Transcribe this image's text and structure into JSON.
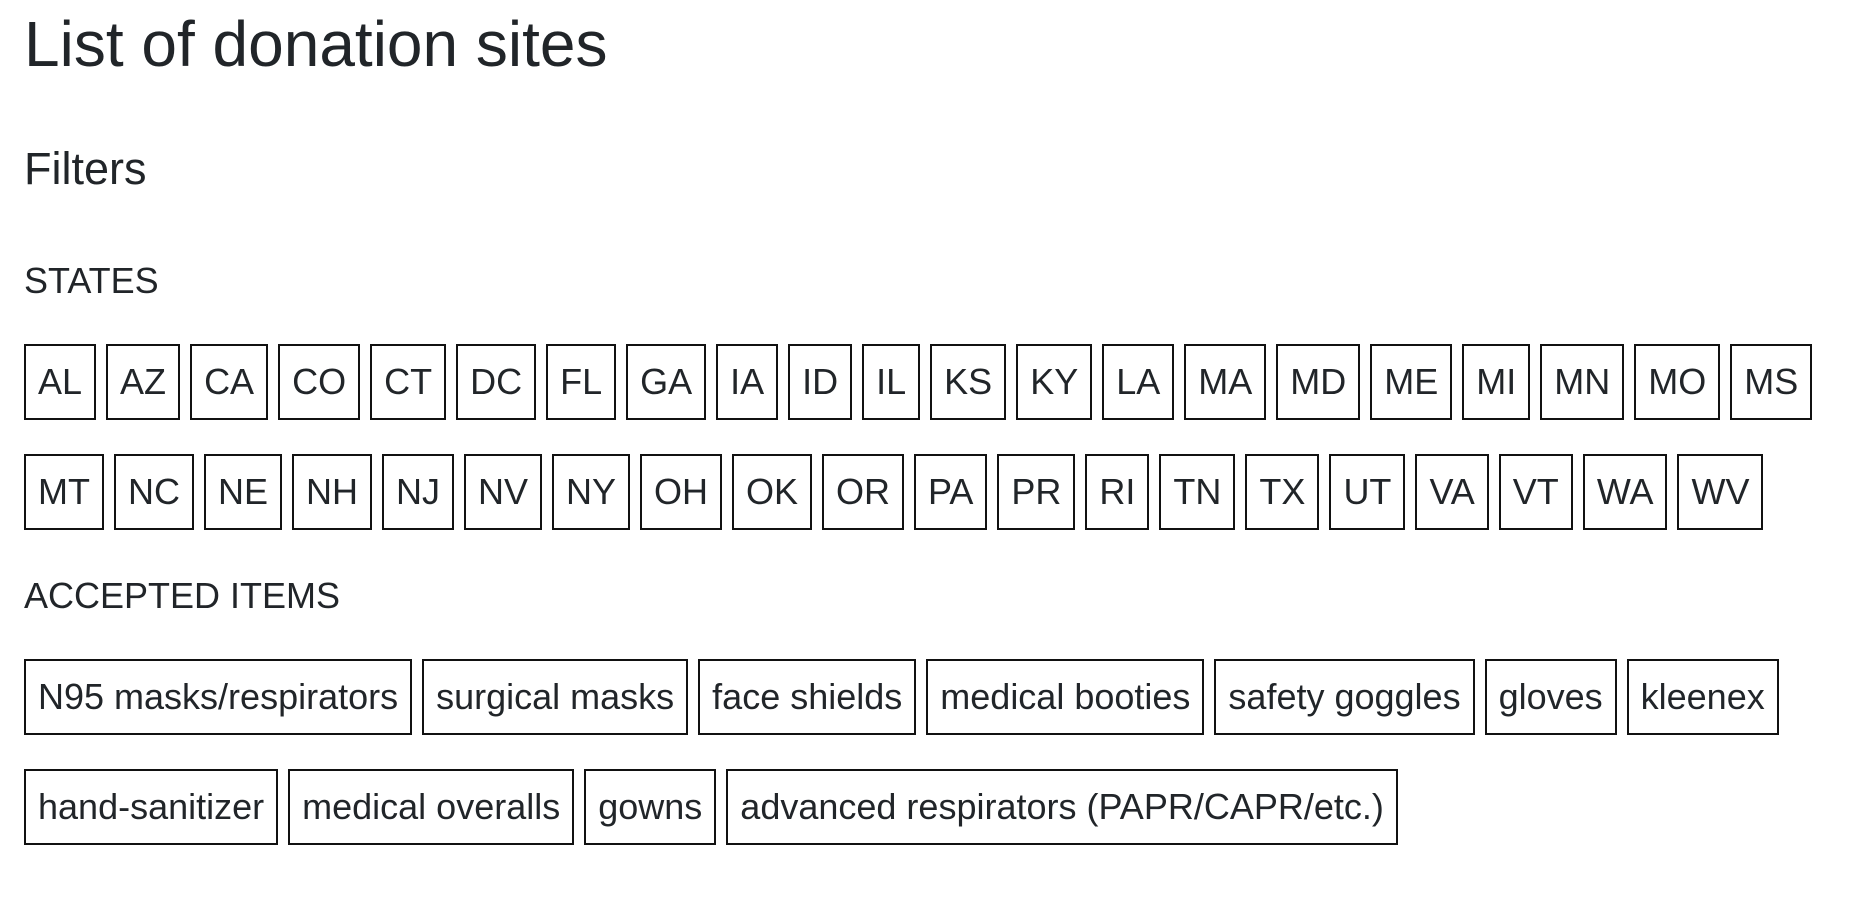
{
  "page": {
    "title": "List of donation sites"
  },
  "filters": {
    "heading": "Filters",
    "states": {
      "heading": "STATES",
      "items": [
        "AL",
        "AZ",
        "CA",
        "CO",
        "CT",
        "DC",
        "FL",
        "GA",
        "IA",
        "ID",
        "IL",
        "KS",
        "KY",
        "LA",
        "MA",
        "MD",
        "ME",
        "MI",
        "MN",
        "MO",
        "MS",
        "MT",
        "NC",
        "NE",
        "NH",
        "NJ",
        "NV",
        "NY",
        "OH",
        "OK",
        "OR",
        "PA",
        "PR",
        "RI",
        "TN",
        "TX",
        "UT",
        "VA",
        "VT",
        "WA",
        "WV"
      ]
    },
    "accepted_items": {
      "heading": "ACCEPTED ITEMS",
      "items": [
        "N95 masks/respirators",
        "surgical masks",
        "face shields",
        "medical booties",
        "safety goggles",
        "gloves",
        "kleenex",
        "hand-sanitizer",
        "medical overalls",
        "gowns",
        "advanced respirators (PAPR/CAPR/etc.)"
      ]
    }
  }
}
